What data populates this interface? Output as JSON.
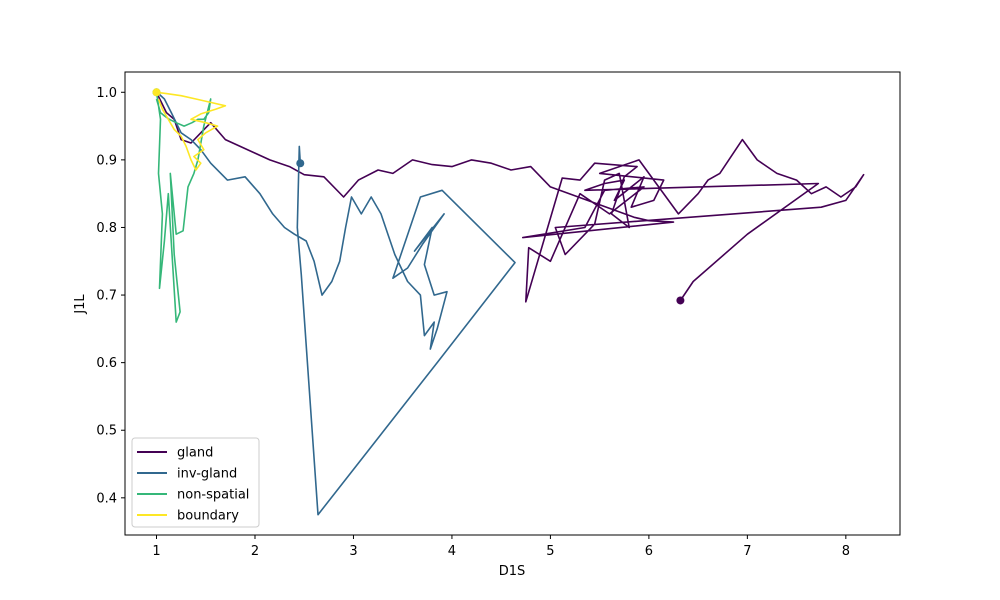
{
  "chart_data": {
    "type": "line",
    "title": "",
    "xlabel": "D1S",
    "ylabel": "J1L",
    "xlim": [
      0.68,
      8.55
    ],
    "ylim": [
      0.345,
      1.03
    ],
    "xticks": [
      1,
      2,
      3,
      4,
      5,
      6,
      7,
      8
    ],
    "yticks": [
      0.4,
      0.5,
      0.6,
      0.7,
      0.8,
      0.9,
      1.0
    ],
    "xtick_labels": [
      "1",
      "2",
      "3",
      "4",
      "5",
      "6",
      "7",
      "8"
    ],
    "ytick_labels": [
      "0.4",
      "0.5",
      "0.6",
      "0.7",
      "0.8",
      "0.9",
      "1.0"
    ],
    "grid": false,
    "legend_position": "lower-left",
    "series": [
      {
        "name": "gland",
        "color": "#440154",
        "start_marker": [
          6.32,
          0.692
        ],
        "points": [
          [
            6.32,
            0.692
          ],
          [
            6.45,
            0.72
          ],
          [
            7.0,
            0.79
          ],
          [
            7.72,
            0.865
          ],
          [
            5.35,
            0.855
          ],
          [
            5.55,
            0.865
          ],
          [
            5.75,
            0.87
          ],
          [
            5.65,
            0.84
          ],
          [
            5.95,
            0.875
          ],
          [
            5.82,
            0.83
          ],
          [
            6.05,
            0.84
          ],
          [
            6.15,
            0.87
          ],
          [
            5.5,
            0.88
          ],
          [
            5.9,
            0.9
          ],
          [
            6.1,
            0.86
          ],
          [
            6.3,
            0.82
          ],
          [
            6.5,
            0.85
          ],
          [
            6.6,
            0.87
          ],
          [
            6.72,
            0.88
          ],
          [
            6.95,
            0.93
          ],
          [
            7.1,
            0.9
          ],
          [
            7.3,
            0.88
          ],
          [
            7.5,
            0.87
          ],
          [
            7.65,
            0.85
          ],
          [
            7.8,
            0.86
          ],
          [
            7.95,
            0.845
          ],
          [
            8.1,
            0.86
          ],
          [
            8.18,
            0.878
          ],
          [
            8.0,
            0.84
          ],
          [
            7.75,
            0.83
          ],
          [
            5.05,
            0.8
          ],
          [
            5.15,
            0.76
          ],
          [
            5.45,
            0.805
          ],
          [
            5.55,
            0.87
          ],
          [
            5.7,
            0.88
          ],
          [
            5.8,
            0.8
          ],
          [
            5.62,
            0.82
          ],
          [
            5.75,
            0.875
          ],
          [
            5.88,
            0.89
          ],
          [
            5.45,
            0.895
          ],
          [
            5.3,
            0.87
          ],
          [
            5.12,
            0.873
          ],
          [
            4.75,
            0.69
          ],
          [
            4.78,
            0.77
          ],
          [
            5.0,
            0.75
          ],
          [
            5.3,
            0.85
          ],
          [
            5.6,
            0.82
          ],
          [
            5.95,
            0.86
          ],
          [
            5.55,
            0.855
          ],
          [
            5.35,
            0.8
          ],
          [
            4.72,
            0.785
          ],
          [
            6.25,
            0.808
          ],
          [
            6.0,
            0.81
          ],
          [
            5.85,
            0.815
          ],
          [
            5.0,
            0.86
          ],
          [
            4.8,
            0.89
          ],
          [
            4.6,
            0.885
          ],
          [
            4.4,
            0.895
          ],
          [
            4.2,
            0.9
          ],
          [
            4.0,
            0.89
          ],
          [
            3.8,
            0.893
          ],
          [
            3.6,
            0.9
          ],
          [
            3.4,
            0.88
          ],
          [
            3.25,
            0.885
          ],
          [
            3.05,
            0.87
          ],
          [
            2.9,
            0.845
          ],
          [
            2.7,
            0.875
          ],
          [
            2.5,
            0.878
          ],
          [
            2.35,
            0.89
          ],
          [
            2.15,
            0.9
          ],
          [
            2.0,
            0.91
          ],
          [
            1.85,
            0.92
          ],
          [
            1.7,
            0.93
          ],
          [
            1.55,
            0.955
          ],
          [
            1.45,
            0.94
          ],
          [
            1.35,
            0.925
          ],
          [
            1.25,
            0.93
          ],
          [
            1.18,
            0.96
          ],
          [
            1.1,
            0.97
          ],
          [
            1.05,
            0.985
          ],
          [
            1.0,
            1.0
          ]
        ]
      },
      {
        "name": "inv-gland",
        "color": "#31688e",
        "start_marker": [
          2.46,
          0.895
        ],
        "points": [
          [
            2.46,
            0.895
          ],
          [
            2.45,
            0.92
          ],
          [
            2.43,
            0.8
          ],
          [
            2.47,
            0.73
          ],
          [
            2.64,
            0.375
          ],
          [
            3.85,
            0.6
          ],
          [
            4.64,
            0.748
          ],
          [
            3.9,
            0.855
          ],
          [
            3.68,
            0.845
          ],
          [
            3.4,
            0.725
          ],
          [
            3.55,
            0.74
          ],
          [
            3.7,
            0.775
          ],
          [
            3.92,
            0.82
          ],
          [
            3.62,
            0.765
          ],
          [
            3.8,
            0.8
          ],
          [
            3.72,
            0.745
          ],
          [
            3.82,
            0.7
          ],
          [
            3.95,
            0.705
          ],
          [
            3.85,
            0.65
          ],
          [
            3.78,
            0.62
          ],
          [
            3.82,
            0.66
          ],
          [
            3.72,
            0.64
          ],
          [
            3.68,
            0.7
          ],
          [
            3.55,
            0.72
          ],
          [
            3.42,
            0.76
          ],
          [
            3.35,
            0.79
          ],
          [
            3.28,
            0.82
          ],
          [
            3.18,
            0.845
          ],
          [
            3.08,
            0.82
          ],
          [
            2.98,
            0.845
          ],
          [
            2.92,
            0.8
          ],
          [
            2.86,
            0.75
          ],
          [
            2.78,
            0.72
          ],
          [
            2.68,
            0.7
          ],
          [
            2.6,
            0.75
          ],
          [
            2.52,
            0.78
          ],
          [
            2.4,
            0.79
          ],
          [
            2.3,
            0.8
          ],
          [
            2.18,
            0.82
          ],
          [
            2.05,
            0.85
          ],
          [
            1.9,
            0.875
          ],
          [
            1.72,
            0.87
          ],
          [
            1.55,
            0.895
          ],
          [
            1.45,
            0.915
          ],
          [
            1.35,
            0.93
          ],
          [
            1.25,
            0.94
          ],
          [
            1.15,
            0.97
          ],
          [
            1.08,
            0.99
          ],
          [
            1.02,
            0.998
          ]
        ]
      },
      {
        "name": "non-spatial",
        "color": "#35b779",
        "start_marker": [
          1.0,
          1.0
        ],
        "points": [
          [
            1.0,
            1.0
          ],
          [
            1.04,
            0.96
          ],
          [
            1.02,
            0.88
          ],
          [
            1.06,
            0.82
          ],
          [
            1.03,
            0.71
          ],
          [
            1.08,
            0.78
          ],
          [
            1.12,
            0.85
          ],
          [
            1.2,
            0.66
          ],
          [
            1.24,
            0.675
          ],
          [
            1.18,
            0.76
          ],
          [
            1.14,
            0.88
          ],
          [
            1.2,
            0.79
          ],
          [
            1.27,
            0.795
          ],
          [
            1.32,
            0.86
          ],
          [
            1.38,
            0.88
          ],
          [
            1.42,
            0.9
          ],
          [
            1.48,
            0.95
          ],
          [
            1.55,
            0.99
          ],
          [
            1.53,
            0.97
          ],
          [
            1.48,
            0.96
          ],
          [
            1.42,
            0.96
          ],
          [
            1.36,
            0.955
          ],
          [
            1.28,
            0.95
          ],
          [
            1.2,
            0.955
          ],
          [
            1.13,
            0.96
          ],
          [
            1.08,
            0.965
          ],
          [
            1.04,
            0.97
          ],
          [
            1.0,
            0.99
          ]
        ]
      },
      {
        "name": "boundary",
        "color": "#fde725",
        "start_marker": [
          1.0,
          1.0
        ],
        "points": [
          [
            1.0,
            1.0
          ],
          [
            1.1,
            0.998
          ],
          [
            1.25,
            0.995
          ],
          [
            1.4,
            0.99
          ],
          [
            1.55,
            0.985
          ],
          [
            1.7,
            0.98
          ],
          [
            1.6,
            0.975
          ],
          [
            1.45,
            0.968
          ],
          [
            1.35,
            0.96
          ],
          [
            1.5,
            0.955
          ],
          [
            1.62,
            0.95
          ],
          [
            1.5,
            0.94
          ],
          [
            1.42,
            0.93
          ],
          [
            1.48,
            0.915
          ],
          [
            1.38,
            0.905
          ],
          [
            1.45,
            0.895
          ],
          [
            1.4,
            0.885
          ],
          [
            1.35,
            0.9
          ],
          [
            1.3,
            0.92
          ],
          [
            1.25,
            0.935
          ],
          [
            1.18,
            0.945
          ],
          [
            1.12,
            0.96
          ],
          [
            1.06,
            0.975
          ],
          [
            1.02,
            0.99
          ]
        ]
      }
    ]
  }
}
